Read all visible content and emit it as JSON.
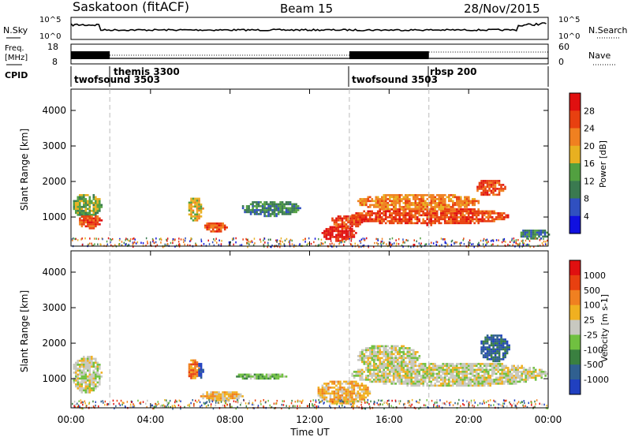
{
  "header": {
    "station": "Saskatoon (fitACF)",
    "beam": "Beam 15",
    "date": "28/Nov/2015"
  },
  "noise_panel": {
    "left_label": "N.Sky",
    "right_label": "N.Search",
    "left_ticks": [
      "10^5",
      "10^0"
    ],
    "right_ticks": [
      "10^5",
      "10^0"
    ]
  },
  "freq_panel": {
    "left_label_line1": "Freq.",
    "left_label_line2": "[MHz]",
    "right_label": "Nave",
    "left_ticks": [
      "18",
      "8"
    ],
    "right_ticks": [
      "60",
      "0"
    ]
  },
  "cpid": {
    "label": "CPID",
    "entries": [
      {
        "name": "twofsound 3503",
        "start_hour": 0.0
      },
      {
        "name": "themis 3300",
        "start_hour": 1.95
      },
      {
        "name": "twofsound 3503",
        "start_hour": 14.0
      },
      {
        "name": "rbsp 200",
        "start_hour": 18.0
      }
    ]
  },
  "axes": {
    "x_label": "Time UT",
    "y_label": "Slant Range [km]",
    "x_ticks": [
      "00:00",
      "04:00",
      "08:00",
      "12:00",
      "16:00",
      "20:00",
      "00:00"
    ],
    "y_ticks": [
      "1000",
      "2000",
      "3000",
      "4000"
    ]
  },
  "power_colorbar": {
    "label": "Power [dB]",
    "ticks": [
      "4",
      "8",
      "12",
      "16",
      "20",
      "24",
      "28"
    ],
    "colors": [
      "#1010e0",
      "#3050c0",
      "#3a7a50",
      "#52a040",
      "#e8b020",
      "#f08020",
      "#e84010",
      "#e01010"
    ]
  },
  "velocity_colorbar": {
    "label": "Velocity [m s-1]",
    "ticks": [
      "1000",
      "500",
      "100",
      "25",
      "-25",
      "-100",
      "-500",
      "-1000"
    ],
    "colors": [
      "#2040c0",
      "#306090",
      "#3a8040",
      "#70c040",
      "#c8c8c0",
      "#f0b020",
      "#f08020",
      "#e84010",
      "#e01010"
    ]
  },
  "chart_data": {
    "type": "heatmap",
    "title": "Saskatoon (fitACF)",
    "x_range_hours": [
      0,
      24
    ],
    "y_range_km": [
      180,
      4600
    ],
    "power_regions": [
      {
        "t0": 0.0,
        "t1": 1.5,
        "r0": 1000,
        "r1": 1700,
        "level": 3
      },
      {
        "t0": 0.3,
        "t1": 1.5,
        "r0": 700,
        "r1": 1100,
        "level": 6
      },
      {
        "t0": 5.8,
        "t1": 6.6,
        "r0": 900,
        "r1": 1600,
        "level": 4
      },
      {
        "t0": 6.6,
        "t1": 7.8,
        "r0": 600,
        "r1": 900,
        "level": 6
      },
      {
        "t0": 8.5,
        "t1": 11.5,
        "r0": 1050,
        "r1": 1500,
        "level": 2
      },
      {
        "t0": 12.5,
        "t1": 14.3,
        "r0": 350,
        "r1": 800,
        "level": 7
      },
      {
        "t0": 13.0,
        "t1": 14.6,
        "r0": 700,
        "r1": 1100,
        "level": 6
      },
      {
        "t0": 14.0,
        "t1": 22.0,
        "r0": 800,
        "r1": 1300,
        "level": 6
      },
      {
        "t0": 14.3,
        "t1": 20.5,
        "r0": 1200,
        "r1": 1700,
        "level": 5
      },
      {
        "t0": 20.3,
        "t1": 21.8,
        "r0": 1600,
        "r1": 2100,
        "level": 6
      },
      {
        "t0": 22.5,
        "t1": 24.0,
        "r0": 400,
        "r1": 700,
        "level": 2
      }
    ],
    "velocity_regions": [
      {
        "t0": 0.0,
        "t1": 1.5,
        "r0": 600,
        "r1": 1700,
        "level": 4
      },
      {
        "t0": 5.8,
        "t1": 6.4,
        "r0": 1000,
        "r1": 1600,
        "level": 6
      },
      {
        "t0": 6.3,
        "t1": 6.6,
        "r0": 1000,
        "r1": 1500,
        "level": 0
      },
      {
        "t0": 6.4,
        "t1": 8.6,
        "r0": 400,
        "r1": 700,
        "level": 5
      },
      {
        "t0": 12.3,
        "t1": 15.0,
        "r0": 300,
        "r1": 1000,
        "level": 5
      },
      {
        "t0": 14.0,
        "t1": 24.0,
        "r0": 800,
        "r1": 1500,
        "level": 4
      },
      {
        "t0": 14.3,
        "t1": 17.5,
        "r0": 1300,
        "r1": 2000,
        "level": 4
      },
      {
        "t0": 20.5,
        "t1": 22.0,
        "r0": 1500,
        "r1": 2300,
        "level": 1
      },
      {
        "t0": 8.2,
        "t1": 10.8,
        "r0": 1000,
        "r1": 1200,
        "level": 3
      }
    ]
  }
}
